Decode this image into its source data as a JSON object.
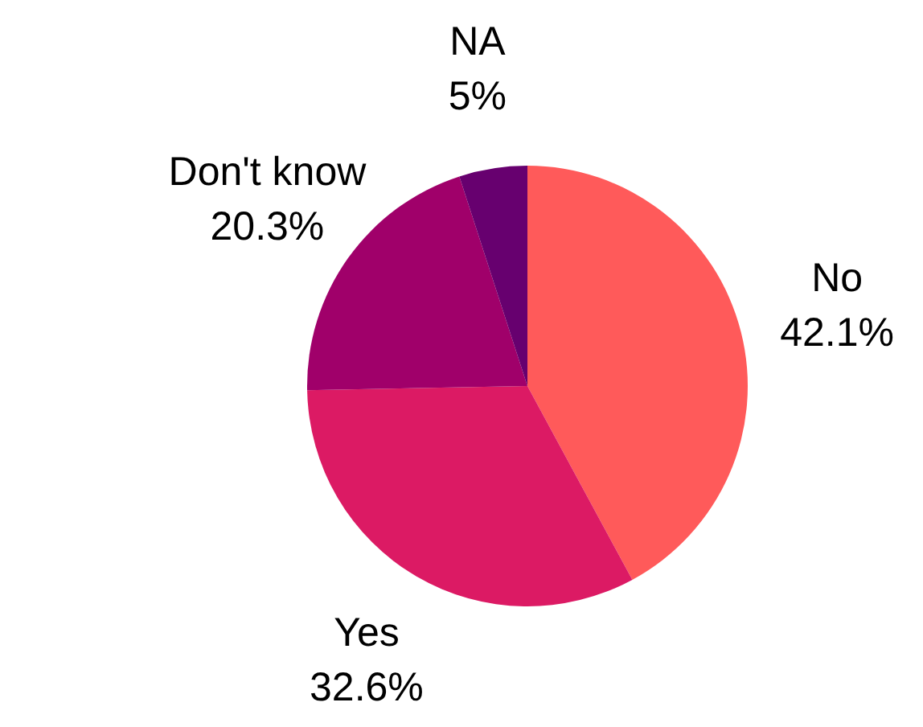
{
  "chart_data": {
    "type": "pie",
    "categories": [
      "No",
      "Yes",
      "Don't know",
      "NA"
    ],
    "values": [
      42.1,
      32.6,
      20.3,
      5
    ],
    "value_labels": [
      "42.1%",
      "32.6%",
      "20.3%",
      "5%"
    ],
    "colors": [
      "#ff5a5a",
      "#dc1a64",
      "#a0006a",
      "#67006f"
    ]
  }
}
